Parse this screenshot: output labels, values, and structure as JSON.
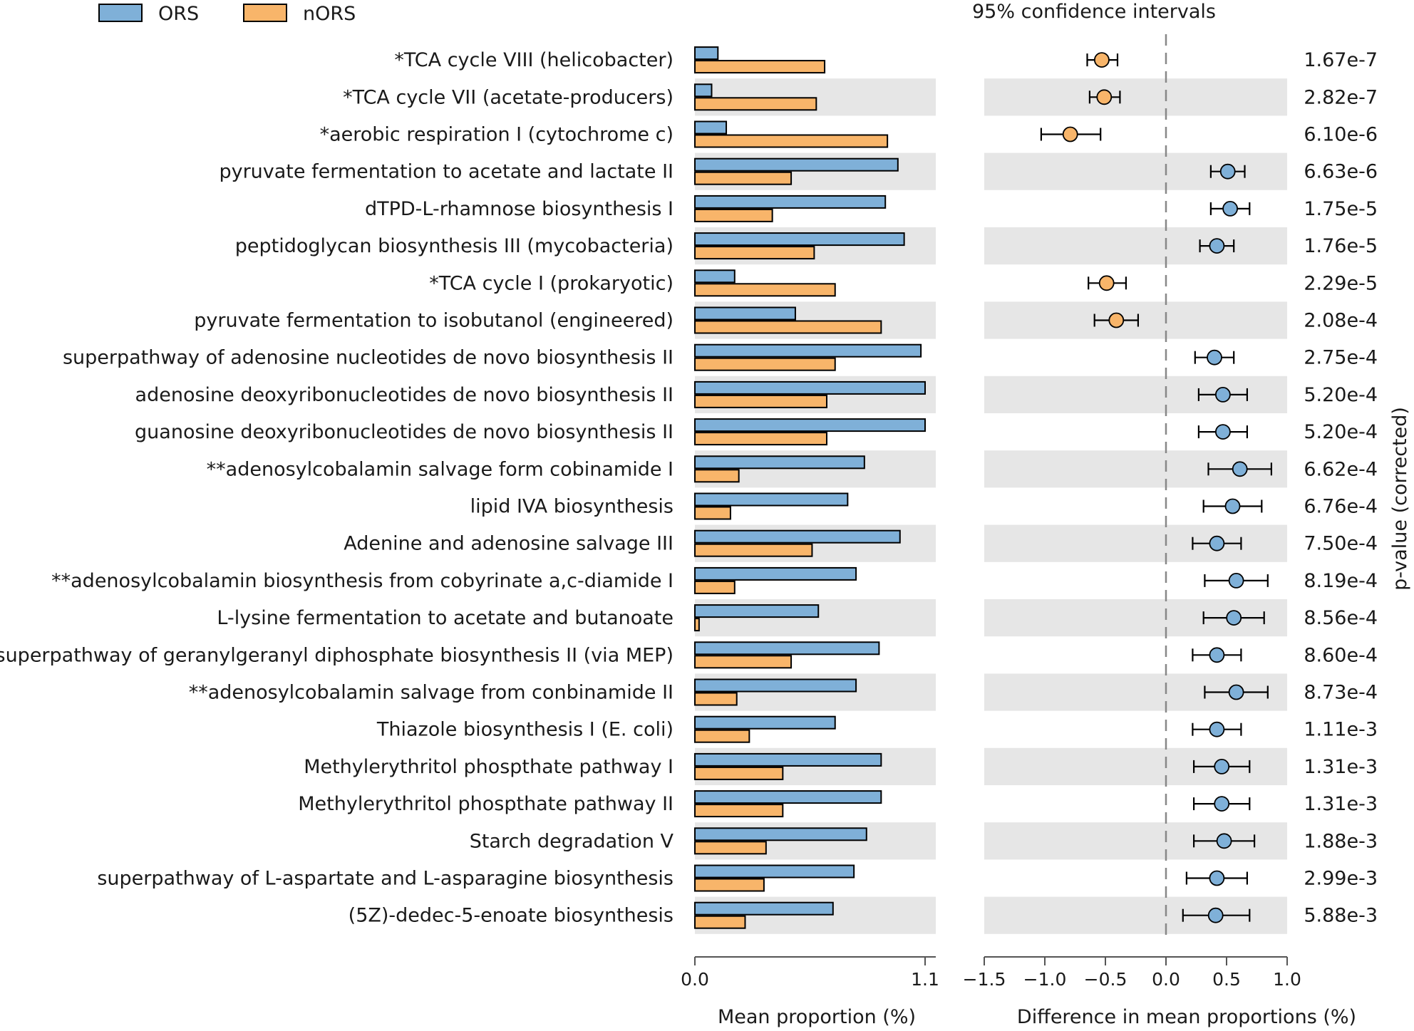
{
  "chart_data": {
    "type": "bar",
    "title": "",
    "legend": [
      {
        "name": "ORS",
        "color": "#7fb0d8"
      },
      {
        "name": "nORS",
        "color": "#f8b56a"
      }
    ],
    "ci_title": "95% confidence intervals",
    "left_xlabel": "Mean proportion (%)",
    "right_xlabel": "Difference in mean proportions (%)",
    "pvalue_label": "p-value (corrected)",
    "left_xlim": [
      0,
      1.1
    ],
    "left_ticks": [
      "0.0",
      "1.1"
    ],
    "right_xlim": [
      -1.5,
      1.0
    ],
    "right_ticks": [
      "−1.5",
      "−1.0",
      "−0.5",
      "0.0",
      "0.5",
      "1.0"
    ],
    "categories": [
      "*TCA cycle VIII (helicobacter)",
      "*TCA cycle VII (acetate-producers)",
      "*aerobic respiration I (cytochrome c)",
      "pyruvate fermentation to acetate and lactate II",
      "dTPD-L-rhamnose biosynthesis I",
      "peptidoglycan biosynthesis III (mycobacteria)",
      "*TCA cycle I (prokaryotic)",
      "pyruvate fermentation to isobutanol (engineered)",
      "superpathway of adenosine nucleotides de novo biosynthesis II",
      "adenosine deoxyribonucleotides de novo biosynthesis II",
      "guanosine deoxyribonucleotides de novo biosynthesis II",
      "**adenosylcobalamin salvage form cobinamide I",
      "lipid IVA biosynthesis",
      "Adenine and adenosine salvage III",
      "**adenosylcobalamin biosynthesis from cobyrinate a,c-diamide I",
      "L-lysine fermentation to acetate and butanoate",
      "superpathway of geranylgeranyl diphosphate biosynthesis II (via MEP)",
      "**adenosylcobalamin salvage from conbinamide II",
      "Thiazole biosynthesis I (E. coli)",
      "Methylerythritol phospthate pathway  I",
      "Methylerythritol phospthate pathway  II",
      "Starch degradation V",
      "superpathway of L-aspartate and L-asparagine biosynthesis",
      "(5Z)-dedec-5-enoate biosynthesis"
    ],
    "series": [
      {
        "name": "ORS",
        "values": [
          0.11,
          0.08,
          0.15,
          0.97,
          0.91,
          1.0,
          0.19,
          0.48,
          1.08,
          1.1,
          1.1,
          0.81,
          0.73,
          0.98,
          0.77,
          0.59,
          0.88,
          0.77,
          0.67,
          0.89,
          0.89,
          0.82,
          0.76,
          0.66
        ]
      },
      {
        "name": "nORS",
        "values": [
          0.62,
          0.58,
          0.92,
          0.46,
          0.37,
          0.57,
          0.67,
          0.89,
          0.67,
          0.63,
          0.63,
          0.21,
          0.17,
          0.56,
          0.19,
          0.02,
          0.46,
          0.2,
          0.26,
          0.42,
          0.42,
          0.34,
          0.33,
          0.24
        ]
      }
    ],
    "differences": [
      {
        "mean": -0.53,
        "low": -0.65,
        "high": -0.4,
        "group": "nORS"
      },
      {
        "mean": -0.51,
        "low": -0.63,
        "high": -0.38,
        "group": "nORS"
      },
      {
        "mean": -0.79,
        "low": -1.03,
        "high": -0.54,
        "group": "nORS"
      },
      {
        "mean": 0.51,
        "low": 0.37,
        "high": 0.65,
        "group": "ORS"
      },
      {
        "mean": 0.53,
        "low": 0.37,
        "high": 0.69,
        "group": "ORS"
      },
      {
        "mean": 0.42,
        "low": 0.28,
        "high": 0.56,
        "group": "ORS"
      },
      {
        "mean": -0.49,
        "low": -0.64,
        "high": -0.33,
        "group": "nORS"
      },
      {
        "mean": -0.41,
        "low": -0.59,
        "high": -0.23,
        "group": "nORS"
      },
      {
        "mean": 0.4,
        "low": 0.24,
        "high": 0.56,
        "group": "ORS"
      },
      {
        "mean": 0.47,
        "low": 0.27,
        "high": 0.67,
        "group": "ORS"
      },
      {
        "mean": 0.47,
        "low": 0.27,
        "high": 0.67,
        "group": "ORS"
      },
      {
        "mean": 0.61,
        "low": 0.35,
        "high": 0.87,
        "group": "ORS"
      },
      {
        "mean": 0.55,
        "low": 0.31,
        "high": 0.79,
        "group": "ORS"
      },
      {
        "mean": 0.42,
        "low": 0.22,
        "high": 0.62,
        "group": "ORS"
      },
      {
        "mean": 0.58,
        "low": 0.32,
        "high": 0.84,
        "group": "ORS"
      },
      {
        "mean": 0.56,
        "low": 0.31,
        "high": 0.81,
        "group": "ORS"
      },
      {
        "mean": 0.42,
        "low": 0.22,
        "high": 0.62,
        "group": "ORS"
      },
      {
        "mean": 0.58,
        "low": 0.32,
        "high": 0.84,
        "group": "ORS"
      },
      {
        "mean": 0.42,
        "low": 0.22,
        "high": 0.62,
        "group": "ORS"
      },
      {
        "mean": 0.46,
        "low": 0.23,
        "high": 0.69,
        "group": "ORS"
      },
      {
        "mean": 0.46,
        "low": 0.23,
        "high": 0.69,
        "group": "ORS"
      },
      {
        "mean": 0.48,
        "low": 0.23,
        "high": 0.73,
        "group": "ORS"
      },
      {
        "mean": 0.42,
        "low": 0.17,
        "high": 0.67,
        "group": "ORS"
      },
      {
        "mean": 0.41,
        "low": 0.14,
        "high": 0.69,
        "group": "ORS"
      }
    ],
    "pvalues": [
      "1.67e-7",
      "2.82e-7",
      "6.10e-6",
      "6.63e-6",
      "1.75e-5",
      "1.76e-5",
      "2.29e-5",
      "2.08e-4",
      "2.75e-4",
      "5.20e-4",
      "5.20e-4",
      "6.62e-4",
      "6.76e-4",
      "7.50e-4",
      "8.19e-4",
      "8.56e-4",
      "8.60e-4",
      "8.73e-4",
      "1.11e-3",
      "1.31e-3",
      "1.31e-3",
      "1.88e-3",
      "2.99e-3",
      "5.88e-3"
    ]
  }
}
